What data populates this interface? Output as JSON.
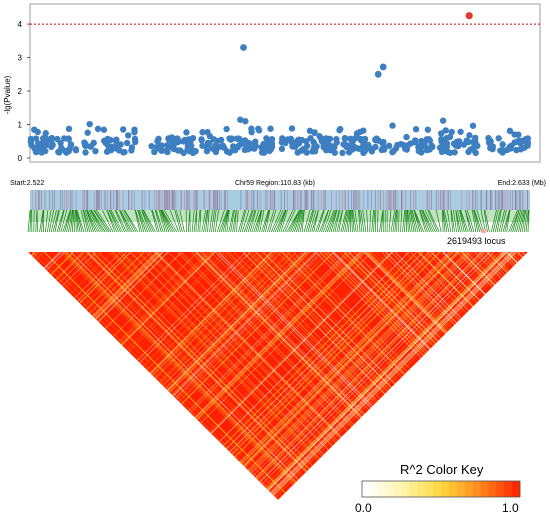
{
  "chart_data": {
    "type": "scatter",
    "ylabel": "-lg(Pvalue)",
    "y_ticks": [
      "0",
      "1",
      "2",
      "3",
      "4"
    ],
    "ylim": [
      0,
      4.6
    ],
    "threshold": 4,
    "x_range_mb": [
      2.522,
      2.633
    ],
    "region": {
      "start_label": "Start:2.522",
      "mid_label": "Chr59 Region:110.83 (kb)",
      "end_label": "End:2.633 (Mb)"
    },
    "top_snp": {
      "label": "2619493 locus",
      "x_mb": 2.6195,
      "y": 4.25
    },
    "highlight_points": [
      {
        "x_mb": 2.5694,
        "y": 3.3
      },
      {
        "x_mb": 2.6004,
        "y": 2.72
      },
      {
        "x_mb": 2.5993,
        "y": 2.5
      }
    ],
    "colors": {
      "point": "#3d7fc0",
      "top_point": "#e03c2e",
      "threshold": "#cc0000",
      "gene_bar": "#a8cce0",
      "ld_link": "#118811",
      "ld_high": "#ff2000"
    },
    "color_key": {
      "title": "R^2 Color Key",
      "min_label": "0.0",
      "max_label": "1.0"
    }
  }
}
